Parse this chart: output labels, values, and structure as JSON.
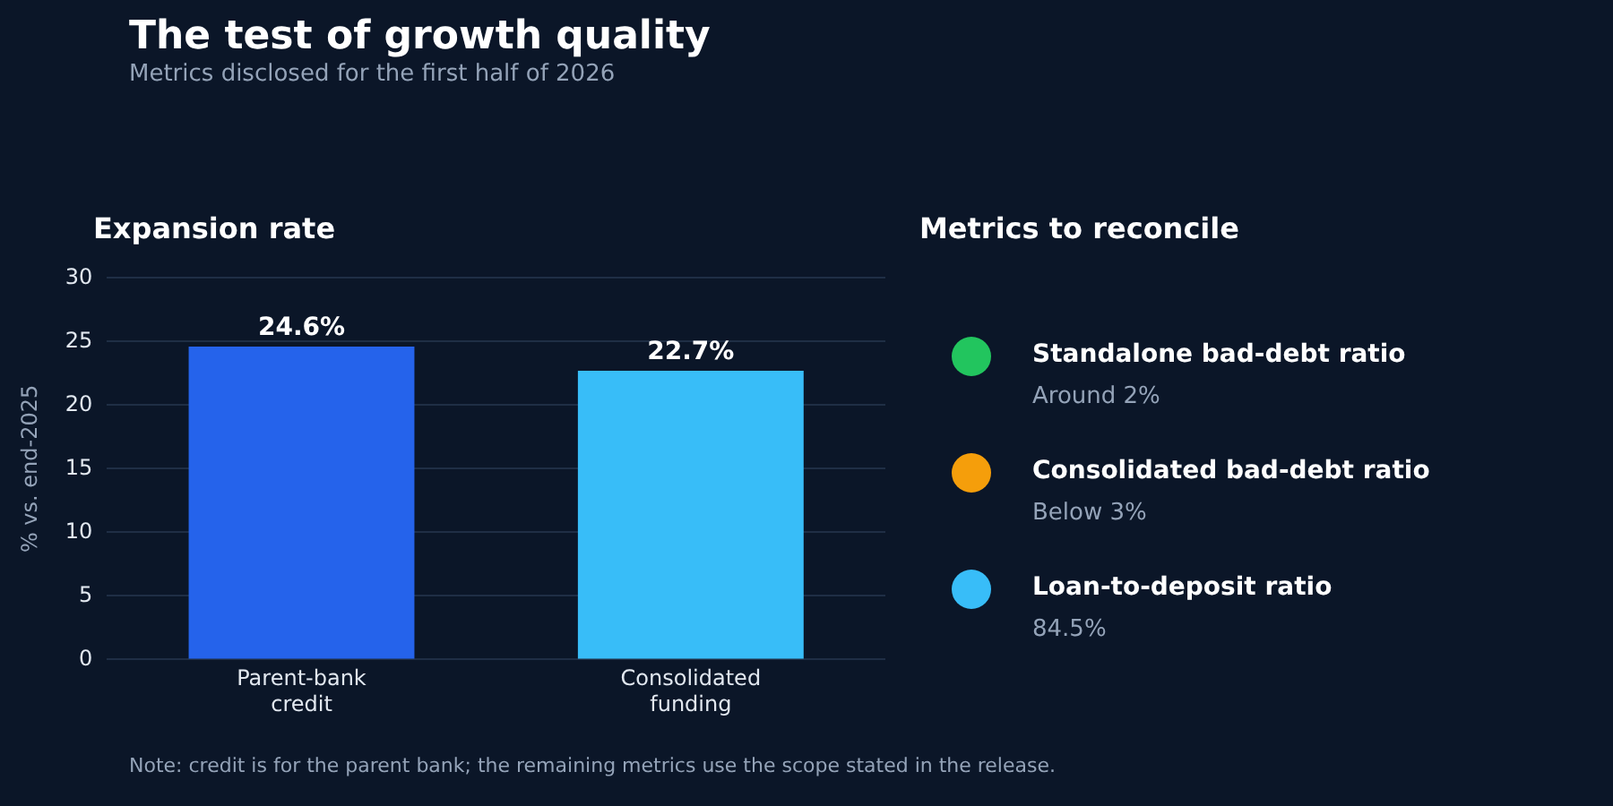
{
  "chart_data": [
    {
      "type": "other",
      "title": "The test of growth quality",
      "subtitle": "Metrics disclosed for the first half of 2026",
      "annotations": [
        "Note: credit is for the parent bank; the remaining metrics use the scope stated in the release."
      ]
    },
    {
      "type": "bar",
      "title": "Expansion rate",
      "ylabel": "% vs. end-2025",
      "categories": [
        "Parent-bank credit",
        "Consolidated funding"
      ],
      "values": [
        24.6,
        22.7
      ],
      "value_labels": [
        "24.6%",
        "22.7%"
      ],
      "colors": [
        "#2563eb",
        "#38bdf8"
      ],
      "ylim": [
        0,
        30
      ],
      "yticks": [
        0,
        5,
        10,
        15,
        20,
        25,
        30
      ],
      "grid": "y"
    },
    {
      "type": "other",
      "title": "Metrics to reconcile",
      "annotations": [
        "Standalone bad-debt ratio",
        "Around 2%",
        "Consolidated bad-debt ratio",
        "Below 3%",
        "Loan-to-deposit ratio",
        "84.5%"
      ]
    }
  ]
}
